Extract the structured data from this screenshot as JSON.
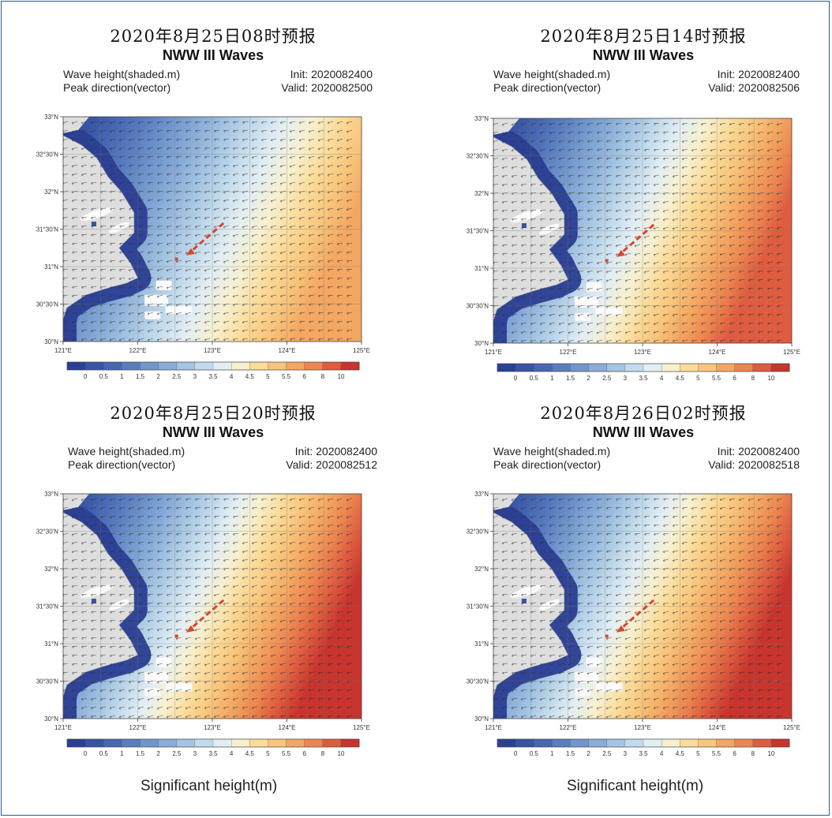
{
  "chart_data": [
    {
      "type": "heatmap",
      "title_cn": "2020年8月25日08时预报",
      "title": "NWW III  Waves",
      "subtitle_left": [
        "Wave height(shaded.m)",
        "Peak direction(vector)"
      ],
      "subtitle_right": [
        "Init: 2020082400",
        "Valid: 2020082500"
      ],
      "x_ticks": [
        "121°E",
        "122°E",
        "123°E",
        "124°E",
        "125°E"
      ],
      "y_ticks": [
        "33°N",
        "32°30'N",
        "32°N",
        "31°30'N",
        "31°N",
        "30°30'N",
        "30°N"
      ],
      "xlim": [
        121,
        125
      ],
      "ylim": [
        30,
        33
      ],
      "field_max_east_m": 6,
      "colorbar_levels": [
        "0",
        "0.5",
        "1",
        "1.5",
        "2",
        "2.5",
        "3",
        "3.5",
        "4",
        "4.5",
        "5",
        "5.5",
        "6",
        "8",
        "10"
      ],
      "colorbar_label": ""
    },
    {
      "type": "heatmap",
      "title_cn": "2020年8月25日14时预报",
      "title": "NWW III  Waves",
      "subtitle_left": [
        "Wave height(shaded.m)",
        "Peak direction(vector)"
      ],
      "subtitle_right": [
        "Init: 2020082400",
        "Valid: 2020082506"
      ],
      "x_ticks": [
        "121°E",
        "122°E",
        "123°E",
        "124°E",
        "125°E"
      ],
      "y_ticks": [
        "33°N",
        "32°30'N",
        "32°N",
        "31°30'N",
        "31°N",
        "30°30'N",
        "30°N"
      ],
      "xlim": [
        121,
        125
      ],
      "ylim": [
        30,
        33
      ],
      "field_max_east_m": 7,
      "colorbar_levels": [
        "0",
        "0.5",
        "1",
        "1.5",
        "2",
        "2.5",
        "3",
        "3.5",
        "4",
        "4.5",
        "5",
        "5.5",
        "6",
        "8",
        "10"
      ],
      "colorbar_label": ""
    },
    {
      "type": "heatmap",
      "title_cn": "2020年8月25日20时预报",
      "title": "NWW III  Waves",
      "subtitle_left": [
        "Wave height(shaded.m)",
        "Peak direction(vector)"
      ],
      "subtitle_right": [
        "Init: 2020082400",
        "Valid: 2020082512"
      ],
      "x_ticks": [
        "121°E",
        "122°E",
        "123°E",
        "124°E",
        "125°E"
      ],
      "y_ticks": [
        "33°N",
        "32°30'N",
        "32°N",
        "31°30'N",
        "31°N",
        "30°30'N",
        "30°N"
      ],
      "xlim": [
        121,
        125
      ],
      "ylim": [
        30,
        33
      ],
      "field_max_east_m": 8,
      "colorbar_levels": [
        "0",
        "0.5",
        "1",
        "1.5",
        "2",
        "2.5",
        "3",
        "3.5",
        "4",
        "4.5",
        "5",
        "5.5",
        "6",
        "8",
        "10"
      ],
      "colorbar_label": "Significant height(m)"
    },
    {
      "type": "heatmap",
      "title_cn": "2020年8月26日02时预报",
      "title": "NWW III  Waves",
      "subtitle_left": [
        "Wave height(shaded.m)",
        "Peak direction(vector)"
      ],
      "subtitle_right": [
        "Init: 2020082400",
        "Valid: 2020082518"
      ],
      "x_ticks": [
        "121°E",
        "122°E",
        "123°E",
        "124°E",
        "125°E"
      ],
      "y_ticks": [
        "33°N",
        "32°30'N",
        "32°N",
        "31°30'N",
        "31°N",
        "30°30'N",
        "30°N"
      ],
      "xlim": [
        121,
        125
      ],
      "ylim": [
        30,
        33
      ],
      "field_max_east_m": 8,
      "colorbar_levels": [
        "0",
        "0.5",
        "1",
        "1.5",
        "2",
        "2.5",
        "3",
        "3.5",
        "4",
        "4.5",
        "5",
        "5.5",
        "6",
        "8",
        "10"
      ],
      "colorbar_label": "Significant height(m)"
    }
  ],
  "palette": [
    "#2b3f94",
    "#3953a4",
    "#4767b2",
    "#5a7dc0",
    "#7096cc",
    "#89acd8",
    "#a4c4e2",
    "#c3dbec",
    "#e3eef3",
    "#f7f0cf",
    "#fbdc9a",
    "#f8c57c",
    "#f3a762",
    "#ec8650",
    "#de5c3f",
    "#c7352e"
  ],
  "land_color": "#dedede"
}
